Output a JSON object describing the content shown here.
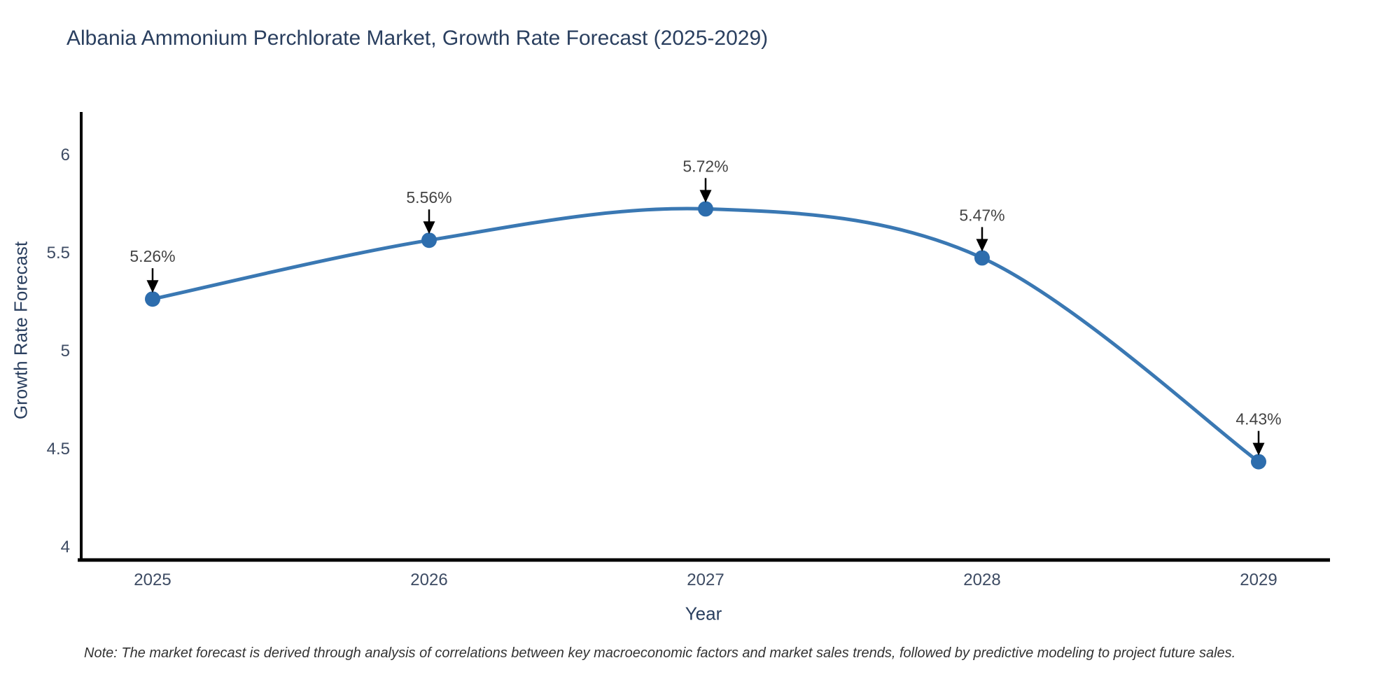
{
  "page": {
    "title": "Albania Ammonium Perchlorate Market, Growth Rate Forecast (2025-2029)",
    "note": "Note: The market forecast is derived through analysis of correlations between key macroeconomic factors and market sales trends, followed by predictive modeling to project future sales."
  },
  "chart_data": {
    "type": "line",
    "title": "Albania Ammonium Perchlorate Market, Growth Rate Forecast (2025-2029)",
    "xlabel": "Year",
    "ylabel": "Growth Rate Forecast",
    "categories": [
      "2025",
      "2026",
      "2027",
      "2028",
      "2029"
    ],
    "series": [
      {
        "name": "Growth Rate Forecast",
        "values": [
          5.26,
          5.56,
          5.72,
          5.47,
          4.43
        ],
        "point_labels": [
          "5.26%",
          "5.56%",
          "5.72%",
          "5.47%",
          "4.43%"
        ]
      }
    ],
    "yticks": [
      4,
      4.5,
      5,
      5.5,
      6
    ],
    "ylim": [
      3.93,
      6.29
    ],
    "line_shape": "spline",
    "grid": false,
    "legend": false,
    "marker": "circle",
    "annotation_style": "value label above each point with downward black arrow",
    "colors": {
      "line": "#3a78b3",
      "marker": "#2d6dad",
      "axis": "#000000",
      "tick_text": "#3d4b63",
      "annotation_text": "#444444",
      "arrow": "#000000",
      "title_text": "#2a3f5f",
      "note_text": "#333333"
    }
  }
}
